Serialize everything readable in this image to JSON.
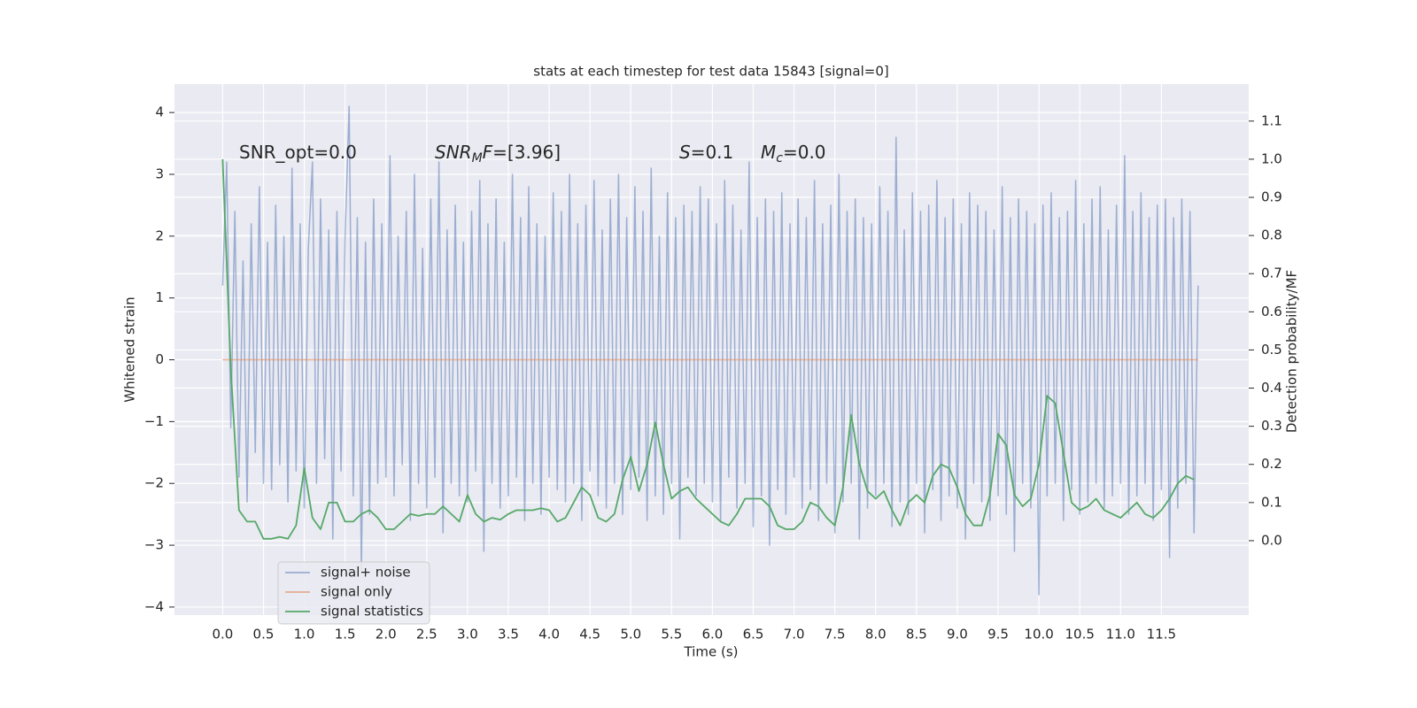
{
  "chart_data": {
    "type": "line",
    "title": "stats at each timestep for test data 15843 [signal=0]",
    "x_label": "Time (s)",
    "y_label": "Whitened strain",
    "y2_label": "Detection probability/MF",
    "grid": true,
    "legend": "lower left",
    "xlim": [
      -0.59,
      12.57
    ],
    "ylim": [
      -4.13,
      4.46
    ],
    "y2lim": [
      -0.195,
      1.197
    ],
    "xticks": [
      {
        "value": 0,
        "label": "0.0"
      },
      {
        "value": 0.5,
        "label": "0.5"
      },
      {
        "value": 1,
        "label": "1.0"
      },
      {
        "value": 1.5,
        "label": "1.5"
      },
      {
        "value": 2,
        "label": "2.0"
      },
      {
        "value": 2.5,
        "label": "2.5"
      },
      {
        "value": 3,
        "label": "3.0"
      },
      {
        "value": 3.5,
        "label": "3.5"
      },
      {
        "value": 4,
        "label": "4.0"
      },
      {
        "value": 4.5,
        "label": "4.5"
      },
      {
        "value": 5,
        "label": "5.0"
      },
      {
        "value": 5.5,
        "label": "5.5"
      },
      {
        "value": 6,
        "label": "6.0"
      },
      {
        "value": 6.5,
        "label": "6.5"
      },
      {
        "value": 7,
        "label": "7.0"
      },
      {
        "value": 7.5,
        "label": "7.5"
      },
      {
        "value": 8,
        "label": "8.0"
      },
      {
        "value": 8.5,
        "label": "8.5"
      },
      {
        "value": 9,
        "label": "9.0"
      },
      {
        "value": 9.5,
        "label": "9.5"
      },
      {
        "value": 10,
        "label": "10.0"
      },
      {
        "value": 10.5,
        "label": "10.5"
      },
      {
        "value": 11,
        "label": "11.0"
      },
      {
        "value": 11.5,
        "label": "11.5"
      }
    ],
    "yticks": [
      {
        "value": -4,
        "label": "−4"
      },
      {
        "value": -3,
        "label": "−3"
      },
      {
        "value": -2,
        "label": "−2"
      },
      {
        "value": -1,
        "label": "−1"
      },
      0,
      1,
      2,
      3,
      4
    ],
    "y2ticks": [
      {
        "value": 0,
        "label": "0.0"
      },
      {
        "value": 0.1,
        "label": "0.1"
      },
      {
        "value": 0.2,
        "label": "0.2"
      },
      {
        "value": 0.3,
        "label": "0.3"
      },
      {
        "value": 0.4,
        "label": "0.4"
      },
      {
        "value": 0.5,
        "label": "0.5"
      },
      {
        "value": 0.6,
        "label": "0.6"
      },
      {
        "value": 0.7,
        "label": "0.7"
      },
      {
        "value": 0.8,
        "label": "0.8"
      },
      {
        "value": 0.9,
        "label": "0.9"
      },
      {
        "value": 1,
        "label": "1.0"
      },
      {
        "value": 1.1,
        "label": "1.1"
      }
    ],
    "annotations": [
      {
        "parts": [
          {
            "text": "SNR_opt=0.0"
          }
        ]
      },
      {
        "parts": [
          {
            "text": "SNR",
            "italic": true
          },
          {
            "text": "M",
            "italic": true,
            "sub": true
          },
          {
            "text": "F",
            "italic": true
          },
          {
            "text": "=[3.96]"
          }
        ]
      },
      {
        "parts": [
          {
            "text": "S",
            "italic": true
          },
          {
            "text": "=0.1"
          }
        ]
      },
      {
        "parts": [
          {
            "text": "M",
            "italic": true
          },
          {
            "text": "c",
            "italic": true,
            "sub": true
          },
          {
            "text": "=0.0"
          }
        ]
      }
    ],
    "series": [
      {
        "name": "signal+ noise",
        "color": "#4c72b0",
        "opacity": 0.5,
        "x": [
          0,
          0.05,
          0.1,
          0.15,
          0.2,
          0.25,
          0.3,
          0.35,
          0.4,
          0.45,
          0.5,
          0.55,
          0.6,
          0.65,
          0.7,
          0.75,
          0.8,
          0.85,
          0.9,
          0.95,
          1,
          1.05,
          1.1,
          1.15,
          1.2,
          1.25,
          1.3,
          1.35,
          1.4,
          1.45,
          1.5,
          1.55,
          1.6,
          1.65,
          1.7,
          1.75,
          1.8,
          1.85,
          1.9,
          1.95,
          2,
          2.05,
          2.1,
          2.15,
          2.2,
          2.25,
          2.3,
          2.35,
          2.4,
          2.45,
          2.5,
          2.55,
          2.6,
          2.65,
          2.7,
          2.75,
          2.8,
          2.85,
          2.9,
          2.95,
          3,
          3.05,
          3.1,
          3.15,
          3.2,
          3.25,
          3.3,
          3.35,
          3.4,
          3.45,
          3.5,
          3.55,
          3.6,
          3.65,
          3.7,
          3.75,
          3.8,
          3.85,
          3.9,
          3.95,
          4,
          4.05,
          4.1,
          4.15,
          4.2,
          4.25,
          4.3,
          4.35,
          4.4,
          4.45,
          4.5,
          4.55,
          4.6,
          4.65,
          4.7,
          4.75,
          4.8,
          4.85,
          4.9,
          4.95,
          5,
          5.05,
          5.1,
          5.15,
          5.2,
          5.25,
          5.3,
          5.35,
          5.4,
          5.45,
          5.5,
          5.55,
          5.6,
          5.65,
          5.7,
          5.75,
          5.8,
          5.85,
          5.9,
          5.95,
          6,
          6.05,
          6.1,
          6.15,
          6.2,
          6.25,
          6.3,
          6.35,
          6.4,
          6.45,
          6.5,
          6.55,
          6.6,
          6.65,
          6.7,
          6.75,
          6.8,
          6.85,
          6.9,
          6.95,
          7,
          7.05,
          7.1,
          7.15,
          7.2,
          7.25,
          7.3,
          7.35,
          7.4,
          7.45,
          7.5,
          7.55,
          7.6,
          7.65,
          7.7,
          7.75,
          7.8,
          7.85,
          7.9,
          7.95,
          8,
          8.05,
          8.1,
          8.15,
          8.2,
          8.25,
          8.3,
          8.35,
          8.4,
          8.45,
          8.5,
          8.55,
          8.6,
          8.65,
          8.7,
          8.75,
          8.8,
          8.85,
          8.9,
          8.95,
          9,
          9.05,
          9.1,
          9.15,
          9.2,
          9.25,
          9.3,
          9.35,
          9.4,
          9.45,
          9.5,
          9.55,
          9.6,
          9.65,
          9.7,
          9.75,
          9.8,
          9.85,
          9.9,
          9.95,
          10,
          10.05,
          10.1,
          10.15,
          10.2,
          10.25,
          10.3,
          10.35,
          10.4,
          10.45,
          10.5,
          10.55,
          10.6,
          10.65,
          10.7,
          10.75,
          10.8,
          10.85,
          10.9,
          10.95,
          11,
          11.05,
          11.1,
          11.15,
          11.2,
          11.25,
          11.3,
          11.35,
          11.4,
          11.45,
          11.5,
          11.55,
          11.6,
          11.65,
          11.7,
          11.75,
          11.8,
          11.85,
          11.9,
          11.95
        ],
        "values": [
          1.2,
          3.2,
          -1.1,
          2.4,
          -1.9,
          1.6,
          -2.3,
          2.2,
          -1.5,
          2.8,
          -2.0,
          1.9,
          -2.1,
          2.5,
          -1.7,
          2.0,
          -2.3,
          3.1,
          -1.8,
          2.2,
          -2.4,
          1.8,
          3.2,
          -2.0,
          2.6,
          -1.6,
          2.1,
          -2.9,
          2.4,
          -1.8,
          2.0,
          4.1,
          -2.2,
          2.3,
          -3.4,
          1.9,
          -2.5,
          2.6,
          -2.0,
          2.2,
          -1.9,
          3.3,
          -2.2,
          2.0,
          -1.7,
          2.4,
          -2.6,
          3.0,
          -2.0,
          1.8,
          -2.4,
          2.6,
          -1.9,
          3.2,
          -2.8,
          2.1,
          -2.0,
          2.5,
          -2.2,
          1.9,
          -2.3,
          2.4,
          -1.8,
          2.9,
          -3.1,
          2.2,
          -2.0,
          2.6,
          -2.4,
          1.9,
          -2.2,
          3.0,
          -1.9,
          2.3,
          -2.6,
          2.8,
          -2.0,
          2.2,
          -2.5,
          2.0,
          -1.9,
          2.7,
          -2.1,
          2.4,
          -2.3,
          3.0,
          -2.0,
          2.2,
          -2.6,
          2.5,
          -1.8,
          2.9,
          -2.2,
          2.1,
          -2.4,
          2.6,
          -2.0,
          3.0,
          -2.5,
          2.3,
          -2.1,
          2.8,
          -1.9,
          2.4,
          -2.6,
          3.1,
          -2.2,
          2.0,
          -2.5,
          2.7,
          -2.0,
          2.3,
          -2.9,
          2.5,
          -1.9,
          2.4,
          -2.2,
          2.8,
          -2.0,
          2.6,
          -2.3,
          2.2,
          -2.6,
          2.9,
          -1.9,
          2.5,
          -2.4,
          2.1,
          -2.0,
          3.2,
          -2.7,
          2.3,
          -2.2,
          2.6,
          -3.0,
          2.4,
          -2.1,
          2.7,
          -2.5,
          2.2,
          -1.9,
          2.6,
          -2.4,
          2.3,
          -2.1,
          2.9,
          -2.6,
          2.2,
          -2.0,
          2.5,
          -2.8,
          3.0,
          -2.3,
          2.4,
          -2.0,
          2.6,
          -2.9,
          2.3,
          -2.4,
          2.2,
          -2.2,
          2.8,
          -2.0,
          2.4,
          -2.7,
          3.6,
          -2.3,
          2.1,
          -2.5,
          2.7,
          -2.0,
          2.4,
          -2.8,
          2.5,
          -2.1,
          2.9,
          -2.6,
          2.3,
          -2.2,
          2.6,
          -2.4,
          2.2,
          -2.9,
          2.7,
          -2.0,
          2.5,
          -2.3,
          2.4,
          -2.6,
          2.1,
          -2.2,
          2.8,
          -2.5,
          2.3,
          -3.1,
          2.6,
          -2.0,
          2.4,
          -2.4,
          2.2,
          -3.8,
          2.5,
          -2.2,
          2.7,
          -2.0,
          2.3,
          -2.6,
          2.4,
          -2.1,
          2.9,
          -2.5,
          2.2,
          -2.3,
          2.6,
          -2.0,
          2.8,
          -2.4,
          2.1,
          -2.2,
          2.5,
          -2.0,
          3.3,
          -2.5,
          2.4,
          -2.2,
          2.7,
          -2.0,
          2.3,
          -2.6,
          2.5,
          -2.1,
          2.6,
          -3.2,
          2.3,
          -2.4,
          2.6,
          -2.0,
          2.4,
          -2.8,
          1.2
        ]
      },
      {
        "name": "signal only",
        "color": "#dd8452",
        "opacity": 0.6,
        "x": [
          0,
          11.95
        ],
        "values": [
          0,
          0
        ]
      },
      {
        "name": "signal statistics",
        "color": "#55a868",
        "opacity": 1,
        "axis": "y2",
        "x": [
          0,
          0.1,
          0.2,
          0.3,
          0.4,
          0.5,
          0.6,
          0.7,
          0.8,
          0.9,
          1,
          1.1,
          1.2,
          1.3,
          1.4,
          1.5,
          1.6,
          1.7,
          1.8,
          1.9,
          2,
          2.1,
          2.2,
          2.3,
          2.4,
          2.5,
          2.6,
          2.7,
          2.8,
          2.9,
          3,
          3.1,
          3.2,
          3.3,
          3.4,
          3.5,
          3.6,
          3.7,
          3.8,
          3.9,
          4,
          4.1,
          4.2,
          4.3,
          4.4,
          4.5,
          4.6,
          4.7,
          4.8,
          4.9,
          5,
          5.1,
          5.2,
          5.3,
          5.4,
          5.5,
          5.6,
          5.7,
          5.8,
          5.9,
          6,
          6.1,
          6.2,
          6.3,
          6.4,
          6.5,
          6.6,
          6.7,
          6.8,
          6.9,
          7,
          7.1,
          7.2,
          7.3,
          7.4,
          7.5,
          7.6,
          7.7,
          7.8,
          7.9,
          8,
          8.1,
          8.2,
          8.3,
          8.4,
          8.5,
          8.6,
          8.7,
          8.8,
          8.9,
          9,
          9.1,
          9.2,
          9.3,
          9.4,
          9.5,
          9.6,
          9.7,
          9.8,
          9.9,
          10,
          10.1,
          10.2,
          10.3,
          10.4,
          10.5,
          10.6,
          10.7,
          10.8,
          10.9,
          11,
          11.1,
          11.2,
          11.3,
          11.4,
          11.5,
          11.6,
          11.7,
          11.8,
          11.9
        ],
        "values": [
          1.0,
          0.45,
          0.08,
          0.05,
          0.05,
          0.005,
          0.005,
          0.01,
          0.005,
          0.04,
          0.19,
          0.06,
          0.03,
          0.1,
          0.1,
          0.05,
          0.05,
          0.07,
          0.08,
          0.06,
          0.03,
          0.03,
          0.05,
          0.07,
          0.065,
          0.07,
          0.07,
          0.09,
          0.07,
          0.05,
          0.12,
          0.07,
          0.05,
          0.06,
          0.055,
          0.07,
          0.08,
          0.08,
          0.08,
          0.085,
          0.08,
          0.05,
          0.06,
          0.1,
          0.14,
          0.12,
          0.06,
          0.05,
          0.07,
          0.16,
          0.22,
          0.13,
          0.2,
          0.31,
          0.2,
          0.11,
          0.13,
          0.14,
          0.11,
          0.09,
          0.07,
          0.05,
          0.04,
          0.07,
          0.11,
          0.11,
          0.11,
          0.09,
          0.04,
          0.03,
          0.03,
          0.05,
          0.1,
          0.09,
          0.06,
          0.04,
          0.14,
          0.33,
          0.2,
          0.13,
          0.11,
          0.13,
          0.08,
          0.04,
          0.1,
          0.12,
          0.1,
          0.17,
          0.2,
          0.19,
          0.14,
          0.07,
          0.04,
          0.04,
          0.12,
          0.28,
          0.25,
          0.12,
          0.09,
          0.11,
          0.2,
          0.38,
          0.36,
          0.23,
          0.1,
          0.08,
          0.09,
          0.11,
          0.08,
          0.07,
          0.06,
          0.08,
          0.1,
          0.07,
          0.06,
          0.08,
          0.11,
          0.15,
          0.17,
          0.16
        ]
      }
    ]
  }
}
